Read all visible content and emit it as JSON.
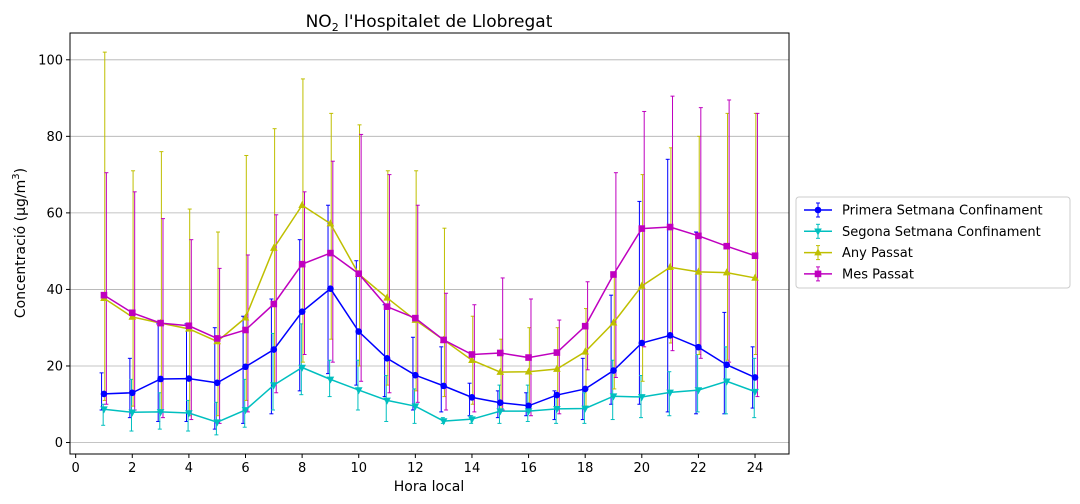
{
  "chart_data": {
    "type": "line",
    "title": {
      "pre": "NO",
      "sub": "2",
      "post": " l'Hospitalet de Llobregat"
    },
    "xlabel": "Hora local",
    "ylabel": {
      "pre": "Concentració (μg/m",
      "sup": "3",
      "post": ")"
    },
    "xlim": [
      -0.2,
      25.2
    ],
    "ylim": [
      -3,
      107
    ],
    "xticks": [
      0,
      2,
      4,
      6,
      8,
      10,
      12,
      14,
      16,
      18,
      20,
      22,
      24
    ],
    "yticks": [
      0,
      20,
      40,
      60,
      80,
      100
    ],
    "grid": "horizontal",
    "legend_position": "center-right, outside plot",
    "x": [
      1,
      2,
      3,
      4,
      5,
      6,
      7,
      8,
      9,
      10,
      11,
      12,
      13,
      14,
      15,
      16,
      17,
      18,
      19,
      20,
      21,
      22,
      23,
      24
    ],
    "series": [
      {
        "name": "Primera Setmana Confinament",
        "color": "#0000ff",
        "marker": "circle",
        "values": [
          12.7,
          13.0,
          16.6,
          16.7,
          15.6,
          19.8,
          24.3,
          34.2,
          40.2,
          29.0,
          22.0,
          17.6,
          14.8,
          11.8,
          10.4,
          9.6,
          12.4,
          14.0,
          18.8,
          26.0,
          28.0,
          24.9,
          20.3,
          17.0
        ],
        "err_high": [
          18.2,
          22.0,
          31.0,
          31.0,
          30.0,
          33.0,
          37.5,
          53.0,
          62.0,
          47.5,
          36.0,
          27.5,
          25.0,
          15.5,
          13.5,
          13.0,
          13.5,
          22.0,
          38.5,
          63.0,
          74.0,
          55.0,
          34.0,
          25.0
        ],
        "err_low": [
          8.5,
          6.5,
          5.5,
          5.5,
          3.5,
          5.0,
          7.5,
          13.5,
          18.0,
          15.0,
          12.0,
          8.5,
          8.0,
          7.0,
          6.5,
          7.0,
          6.0,
          6.0,
          10.0,
          10.0,
          8.0,
          7.5,
          7.5,
          9.0
        ]
      },
      {
        "name": "Segona Setmana Confinament",
        "color": "#00bfbf",
        "marker": "triangle-down",
        "values": [
          8.7,
          7.9,
          8.0,
          7.7,
          5.3,
          8.5,
          15.0,
          19.6,
          16.5,
          13.7,
          11.0,
          9.5,
          5.6,
          6.1,
          8.2,
          8.2,
          8.8,
          8.9,
          12.1,
          11.9,
          13.1,
          13.7,
          16.0,
          13.3
        ],
        "err_high": [
          10.0,
          16.5,
          13.0,
          11.0,
          10.5,
          16.5,
          28.5,
          31.0,
          21.5,
          21.5,
          17.5,
          14.0,
          6.5,
          7.0,
          15.0,
          15.0,
          12.0,
          13.0,
          21.5,
          17.5,
          18.5,
          23.0,
          25.0,
          22.0
        ],
        "err_low": [
          4.5,
          3.0,
          3.5,
          3.0,
          2.0,
          4.0,
          8.5,
          12.5,
          12.0,
          8.5,
          5.5,
          5.0,
          5.0,
          5.0,
          5.0,
          5.5,
          5.0,
          5.0,
          6.0,
          6.5,
          7.0,
          8.0,
          7.5,
          6.5
        ]
      },
      {
        "name": "Any Passat",
        "color": "#bfbf00",
        "marker": "triangle-up",
        "values": [
          37.7,
          32.8,
          31.2,
          29.7,
          26.4,
          32.6,
          50.8,
          62.0,
          57.2,
          44.0,
          37.8,
          32.0,
          26.8,
          21.5,
          18.4,
          18.5,
          19.2,
          23.7,
          31.3,
          40.9,
          45.8,
          44.6,
          44.4,
          43.0
        ],
        "err_high": [
          102.0,
          71.0,
          76.0,
          61.0,
          55.0,
          75.0,
          82.0,
          95.0,
          86.0,
          83.0,
          71.0,
          71.0,
          56.0,
          33.0,
          27.0,
          30.0,
          30.0,
          35.0,
          44.0,
          70.0,
          77.0,
          80.0,
          86.0,
          86.0
        ],
        "err_low": [
          11.0,
          9.5,
          8.0,
          7.0,
          7.0,
          11.0,
          15.0,
          21.0,
          27.0,
          20.0,
          15.0,
          13.5,
          12.0,
          10.0,
          8.5,
          8.0,
          8.5,
          9.5,
          14.0,
          16.0,
          26.0,
          23.0,
          21.5,
          23.0
        ]
      },
      {
        "name": "Mes Passat",
        "color": "#bf00bf",
        "marker": "square",
        "values": [
          38.5,
          33.9,
          31.2,
          30.5,
          27.2,
          29.4,
          36.2,
          46.6,
          49.5,
          44.1,
          35.5,
          32.5,
          26.8,
          23.0,
          23.4,
          22.2,
          23.5,
          30.4,
          43.9,
          55.9,
          56.3,
          54.0,
          51.3,
          48.8
        ],
        "err_high": [
          70.5,
          65.5,
          58.5,
          53.0,
          45.5,
          49.0,
          59.5,
          65.5,
          73.5,
          80.5,
          70.0,
          62.0,
          39.0,
          36.0,
          43.0,
          37.5,
          32.0,
          42.0,
          70.5,
          86.5,
          90.5,
          87.5,
          89.5,
          86.0
        ],
        "err_low": [
          10.0,
          8.5,
          6.5,
          6.0,
          5.0,
          8.0,
          13.0,
          23.0,
          21.0,
          16.0,
          13.0,
          10.5,
          8.5,
          8.0,
          8.5,
          7.0,
          7.5,
          19.0,
          17.0,
          25.0,
          24.0,
          22.0,
          21.0,
          12.0
        ]
      }
    ]
  }
}
